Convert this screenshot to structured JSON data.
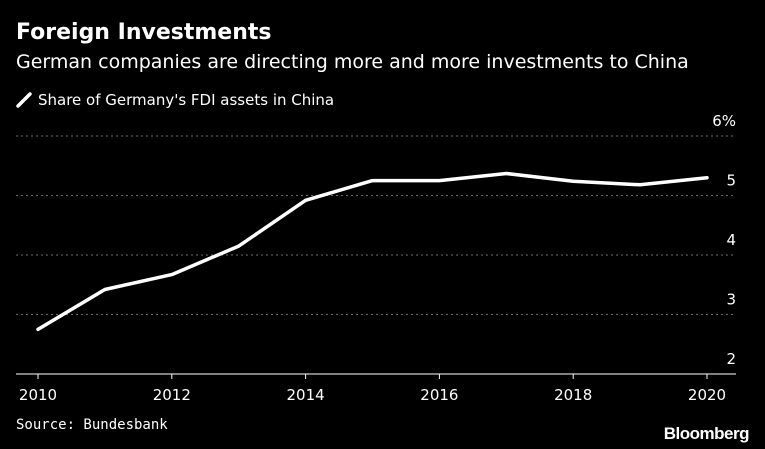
{
  "title": "Foreign Investments",
  "subtitle": "German companies are directing more and more investments to China",
  "legend": {
    "label": "Share of Germany's FDI assets in China",
    "color": "#ffffff"
  },
  "source": "Source: Bundesbank",
  "brand": "Bloomberg",
  "colors": {
    "background": "#000000",
    "line": "#ffffff",
    "grid": "#6e6e6e",
    "text": "#ffffff"
  },
  "chart_data": {
    "type": "line",
    "x": [
      2010,
      2011,
      2012,
      2013,
      2014,
      2015,
      2016,
      2017,
      2018,
      2019,
      2020
    ],
    "series": [
      {
        "name": "Share of Germany's FDI assets in China",
        "values": [
          2.75,
          3.42,
          3.67,
          4.15,
          4.92,
          5.25,
          5.25,
          5.37,
          5.24,
          5.18,
          5.3
        ]
      }
    ],
    "xlim": [
      2010,
      2020
    ],
    "ylim": [
      2,
      6
    ],
    "x_ticks": [
      "2010",
      "2012",
      "2014",
      "2016",
      "2018",
      "2020"
    ],
    "y_ticks": [
      "2",
      "3",
      "4",
      "5",
      "6%"
    ],
    "y_axis_position": "right",
    "grid": "horizontal dotted",
    "legend_position": "top-left"
  }
}
